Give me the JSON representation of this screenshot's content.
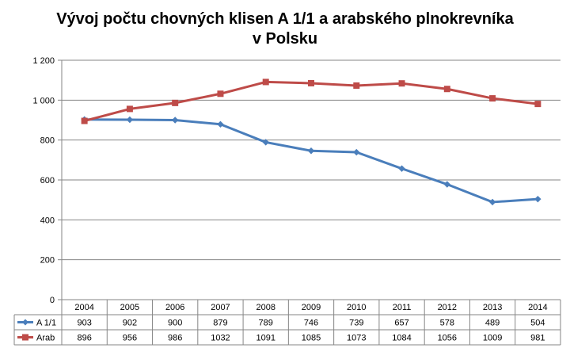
{
  "chart_data": {
    "type": "line",
    "title": "Vývoj počtu chovných klisen A 1/1 a arabského plnokrevníka v Polsku",
    "title_lines": [
      "Vývoj počtu chovných klisen A 1/1 a arabského plnokrevníka",
      "v Polsku"
    ],
    "categories": [
      "2004",
      "2005",
      "2006",
      "2007",
      "2008",
      "2009",
      "2010",
      "2011",
      "2012",
      "2013",
      "2014"
    ],
    "series": [
      {
        "name": "A 1/1",
        "color": "#4a7ebb",
        "marker": "diamond",
        "values": [
          903,
          902,
          900,
          879,
          789,
          746,
          739,
          657,
          578,
          489,
          504
        ]
      },
      {
        "name": "Arab",
        "color": "#be4b48",
        "marker": "square",
        "values": [
          896,
          956,
          986,
          1032,
          1091,
          1085,
          1073,
          1084,
          1056,
          1009,
          981
        ]
      }
    ],
    "ylim": [
      0,
      1200
    ],
    "yticks": [
      "0",
      "200",
      "400",
      "600",
      "800",
      "1 000",
      "1 200"
    ],
    "grid": true,
    "legend": "data-table-below",
    "data_table": true
  }
}
